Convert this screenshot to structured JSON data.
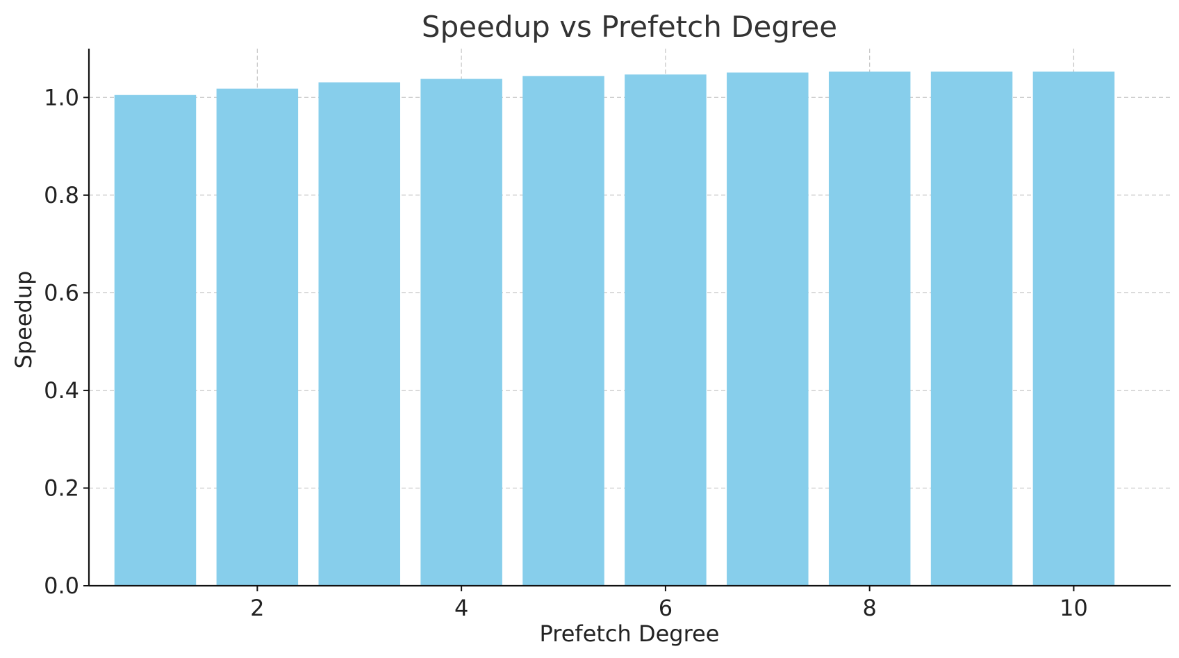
{
  "chart_data": {
    "type": "bar",
    "title": "Speedup vs Prefetch Degree",
    "xlabel": "Prefetch Degree",
    "ylabel": "Speedup",
    "x": [
      1,
      2,
      3,
      4,
      5,
      6,
      7,
      8,
      9,
      10
    ],
    "values": [
      1.005,
      1.018,
      1.031,
      1.038,
      1.044,
      1.047,
      1.051,
      1.053,
      1.053,
      1.053
    ],
    "xlim": [
      0.35,
      10.95
    ],
    "ylim": [
      0,
      1.1
    ],
    "xticks": [
      2,
      4,
      6,
      8,
      10
    ],
    "xtick_labels": [
      "2",
      "4",
      "6",
      "8",
      "10"
    ],
    "yticks": [
      0.0,
      0.2,
      0.4,
      0.6,
      0.8,
      1.0
    ],
    "ytick_labels": [
      "0.0",
      "0.2",
      "0.4",
      "0.6",
      "0.8",
      "1.0"
    ],
    "bar_width": 0.8,
    "bar_color": "#87CEEB",
    "grid": true,
    "legend": "none"
  }
}
